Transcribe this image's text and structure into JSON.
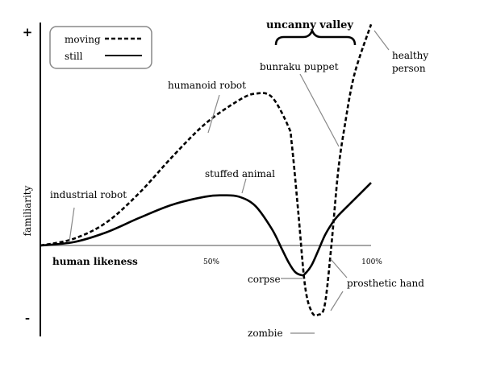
{
  "chart_data": {
    "type": "line",
    "title": "uncanny valley",
    "xlabel": "human likeness",
    "ylabel": "familiarity",
    "y_ticks": {
      "top": "+",
      "bottom": "-"
    },
    "x_ticks": [
      "50%",
      "100%"
    ],
    "xlim": [
      0,
      100
    ],
    "ylim": [
      -1.2,
      3.3
    ],
    "grid": false,
    "legend_position": "top-left",
    "series": [
      {
        "name": "moving",
        "style": "dashed",
        "color": "#000000",
        "x": [
          0,
          10,
          20,
          30,
          40,
          50,
          60,
          65,
          70,
          75,
          76,
          78,
          80,
          82,
          84,
          86,
          88,
          90,
          92,
          95,
          100
        ],
        "y": [
          0,
          0.1,
          0.35,
          0.8,
          1.35,
          1.85,
          2.2,
          2.3,
          2.25,
          1.8,
          1.55,
          0.5,
          -0.6,
          -1.0,
          -1.05,
          -0.9,
          0,
          1.1,
          1.8,
          2.6,
          3.35
        ]
      },
      {
        "name": "still",
        "style": "solid",
        "color": "#000000",
        "x": [
          0,
          10,
          20,
          30,
          40,
          50,
          55,
          60,
          65,
          70,
          73,
          75,
          77,
          79,
          80,
          82,
          84,
          86,
          88,
          90,
          95,
          100
        ],
        "y": [
          0,
          0.05,
          0.2,
          0.42,
          0.62,
          0.74,
          0.76,
          0.74,
          0.6,
          0.25,
          -0.05,
          -0.25,
          -0.4,
          -0.45,
          -0.43,
          -0.3,
          -0.08,
          0.15,
          0.32,
          0.45,
          0.7,
          0.95
        ]
      }
    ],
    "annotations": [
      {
        "text": "industrial robot",
        "x": 8,
        "y": 0.05
      },
      {
        "text": "humanoid robot",
        "x": 47,
        "y": 1.65
      },
      {
        "text": "stuffed animal",
        "x": 58,
        "y": 0.78
      },
      {
        "text": "bunraku puppet",
        "x": 86,
        "y": 1.3
      },
      {
        "text": "healthy person",
        "x": 100,
        "y": 3.2
      },
      {
        "text": "corpse",
        "x": 79,
        "y": -0.45
      },
      {
        "text": "prosthetic hand",
        "x": 88,
        "y": 0
      },
      {
        "text": "zombie",
        "x": 82,
        "y": -1.05
      }
    ]
  }
}
